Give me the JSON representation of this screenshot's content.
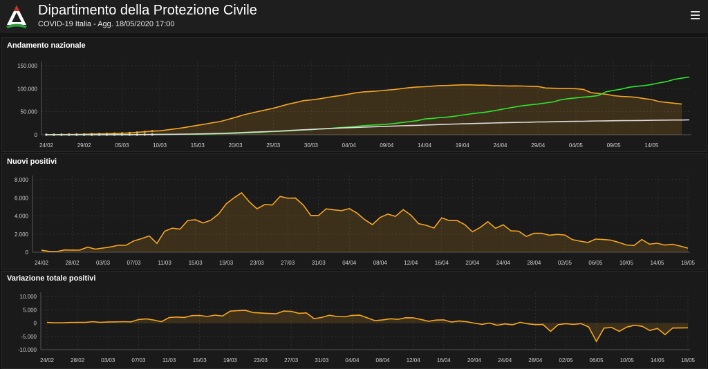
{
  "header": {
    "title": "Dipartimento della Protezione Civile",
    "subtitle": "COVID-19 Italia - Agg. 18/05/2020 17:00",
    "logo_icon": "protezione-civile-logo",
    "menu_icon": "hamburger-menu-icon"
  },
  "colors": {
    "background": "#141414",
    "grid": "#3a3a3a",
    "orange": "#f5a623",
    "green": "#2ee62e",
    "white": "#dddddd"
  },
  "chart_data": [
    {
      "type": "line",
      "title": "Andamento nazionale",
      "x_tick_labels": [
        "24/02",
        "29/02",
        "05/03",
        "10/03",
        "15/03",
        "20/03",
        "25/03",
        "30/03",
        "04/04",
        "09/04",
        "14/04",
        "19/04",
        "24/04",
        "29/04",
        "04/05",
        "09/05",
        "14/05"
      ],
      "y_tick_labels": [
        "0",
        "50.000",
        "100.000",
        "150.000"
      ],
      "ylim": [
        0,
        150000
      ],
      "grid": true,
      "series": [
        {
          "color": "orange",
          "fill": true,
          "values": [
            221,
            311,
            385,
            588,
            821,
            1049,
            1577,
            1835,
            2263,
            2706,
            3296,
            3916,
            5061,
            6387,
            7985,
            8514,
            10590,
            12839,
            14955,
            17750,
            20603,
            23073,
            26062,
            28710,
            33190,
            37860,
            42681,
            46638,
            50418,
            54030,
            57521,
            62013,
            66414,
            70065,
            73880,
            75528,
            77635,
            80572,
            83049,
            85388,
            88274,
            91246,
            93187,
            94067,
            95262,
            96877,
            98273,
            100269,
            102253,
            103616,
            104291,
            105418,
            106607,
            106962,
            107771,
            108257,
            108237,
            107709,
            107699,
            106848,
            106527,
            105847,
            106103,
            105813,
            105205,
            104657,
            101551,
            100943,
            100704,
            100179,
            99980,
            98467,
            91528,
            89624,
            87961,
            84842,
            83324,
            82488,
            81266,
            78457,
            76440,
            72070,
            70187,
            68351,
            66553
          ]
        },
        {
          "color": "green",
          "fill": false,
          "values": [
            1,
            1,
            1,
            1,
            3,
            45,
            46,
            46,
            50,
            83,
            149,
            160,
            276,
            414,
            523,
            589,
            622,
            724,
            1004,
            1045,
            1258,
            1439,
            1966,
            2335,
            2749,
            2941,
            4025,
            4440,
            5129,
            6072,
            7024,
            7432,
            8326,
            9362,
            10361,
            10950,
            12384,
            13030,
            14620,
            15729,
            16847,
            18278,
            19758,
            20996,
            21815,
            22837,
            24392,
            26491,
            28470,
            30455,
            34211,
            35435,
            37130,
            38092,
            40164,
            42727,
            44927,
            47055,
            48877,
            51600,
            54543,
            57576,
            60498,
            63120,
            64928,
            66624,
            68941,
            71252,
            75945,
            78249,
            79914,
            81654,
            82879,
            85231,
            93245,
            96276,
            99023,
            103031,
            105186,
            106587,
            109039,
            112541,
            115288,
            120205,
            122810,
            125176
          ]
        },
        {
          "color": "white",
          "fill": false,
          "values": [
            7,
            10,
            12,
            17,
            21,
            29,
            34,
            52,
            79,
            107,
            148,
            197,
            233,
            366,
            463,
            631,
            827,
            1016,
            1266,
            1441,
            1809,
            2158,
            2503,
            2978,
            3405,
            4032,
            4825,
            5476,
            6077,
            6820,
            7503,
            8165,
            9134,
            10023,
            10779,
            11591,
            12428,
            13155,
            13915,
            14681,
            15362,
            15887,
            16523,
            17127,
            17669,
            18279,
            18849,
            19468,
            19899,
            20465,
            21067,
            21645,
            22170,
            22745,
            23227,
            23660,
            24114,
            24648,
            25085,
            25549,
            25969,
            26384,
            26644,
            26977,
            27359,
            27682,
            27967,
            28236,
            28710,
            28884,
            29079,
            29315,
            29684,
            29958,
            30201,
            30395,
            30560,
            30739,
            30911,
            31106,
            31368,
            31610,
            31763,
            31908,
            32007,
            32330
          ]
        }
      ]
    },
    {
      "type": "area",
      "title": "Nuovi positivi",
      "x_tick_labels": [
        "24/02",
        "28/02",
        "03/03",
        "07/03",
        "11/03",
        "15/03",
        "19/03",
        "23/03",
        "27/03",
        "31/03",
        "04/04",
        "08/04",
        "12/04",
        "16/04",
        "20/04",
        "24/04",
        "28/04",
        "02/05",
        "06/05",
        "10/05",
        "14/05",
        "18/05"
      ],
      "y_tick_labels": [
        "0",
        "2.000",
        "4.000",
        "6.000",
        "8.000"
      ],
      "ylim": [
        0,
        8000
      ],
      "grid": true,
      "series": [
        {
          "color": "orange",
          "fill": true,
          "values": [
            221,
            93,
            78,
            250,
            238,
            240,
            566,
            342,
            466,
            587,
            769,
            778,
            1247,
            1492,
            1797,
            977,
            2313,
            2651,
            2547,
            3497,
            3590,
            3233,
            3526,
            4207,
            5322,
            5986,
            6557,
            5560,
            4789,
            5249,
            5210,
            6153,
            5959,
            5974,
            5217,
            4050,
            4053,
            4782,
            4668,
            4585,
            4805,
            4316,
            3599,
            3039,
            3836,
            4204,
            3951,
            4694,
            4092,
            3153,
            2972,
            2667,
            3786,
            3493,
            3491,
            3047,
            2256,
            2729,
            3370,
            2646,
            3021,
            2357,
            2324,
            1739,
            2091,
            2086,
            1872,
            1965,
            1900,
            1389,
            1221,
            1075,
            1444,
            1401,
            1327,
            1083,
            802,
            744,
            1402,
            888,
            992,
            789,
            875,
            675,
            451
          ]
        }
      ]
    },
    {
      "type": "area",
      "title": "Variazione totale positivi",
      "x_tick_labels": [
        "24/02",
        "28/02",
        "03/03",
        "07/03",
        "11/03",
        "15/03",
        "19/03",
        "23/03",
        "27/03",
        "31/03",
        "04/04",
        "08/04",
        "12/04",
        "16/04",
        "20/04",
        "24/04",
        "28/04",
        "02/05",
        "06/05",
        "10/05",
        "14/05",
        "18/05"
      ],
      "y_tick_labels": [
        "-10.000",
        "-5.000",
        "0",
        "5.000",
        "10.000"
      ],
      "ylim": [
        -10000,
        10000
      ],
      "grid": true,
      "series": [
        {
          "color": "orange",
          "fill": true,
          "values": [
            221,
            90,
            74,
            203,
            233,
            228,
            528,
            258,
            428,
            443,
            529,
            429,
            1326,
            1597,
            1145,
            529,
            2076,
            2249,
            2116,
            2795,
            2853,
            2470,
            2989,
            2648,
            4480,
            4670,
            4785,
            3957,
            3780,
            3612,
            3491,
            4492,
            4401,
            3651,
            3815,
            1648,
            2107,
            2937,
            2477,
            2339,
            2886,
            2972,
            1941,
            880,
            1195,
            1615,
            1396,
            1996,
            1984,
            1363,
            675,
            1127,
            1189,
            355,
            809,
            486,
            -20,
            -528,
            -10,
            -851,
            -321,
            -680,
            256,
            -290,
            -608,
            -548,
            -3106,
            -608,
            -239,
            -525,
            -199,
            -1513,
            -6939,
            -1904,
            -1663,
            -3119,
            -1518,
            -836,
            -1222,
            -2809,
            -2017,
            -4370,
            -1883,
            -1836,
            -1798
          ]
        }
      ]
    }
  ]
}
